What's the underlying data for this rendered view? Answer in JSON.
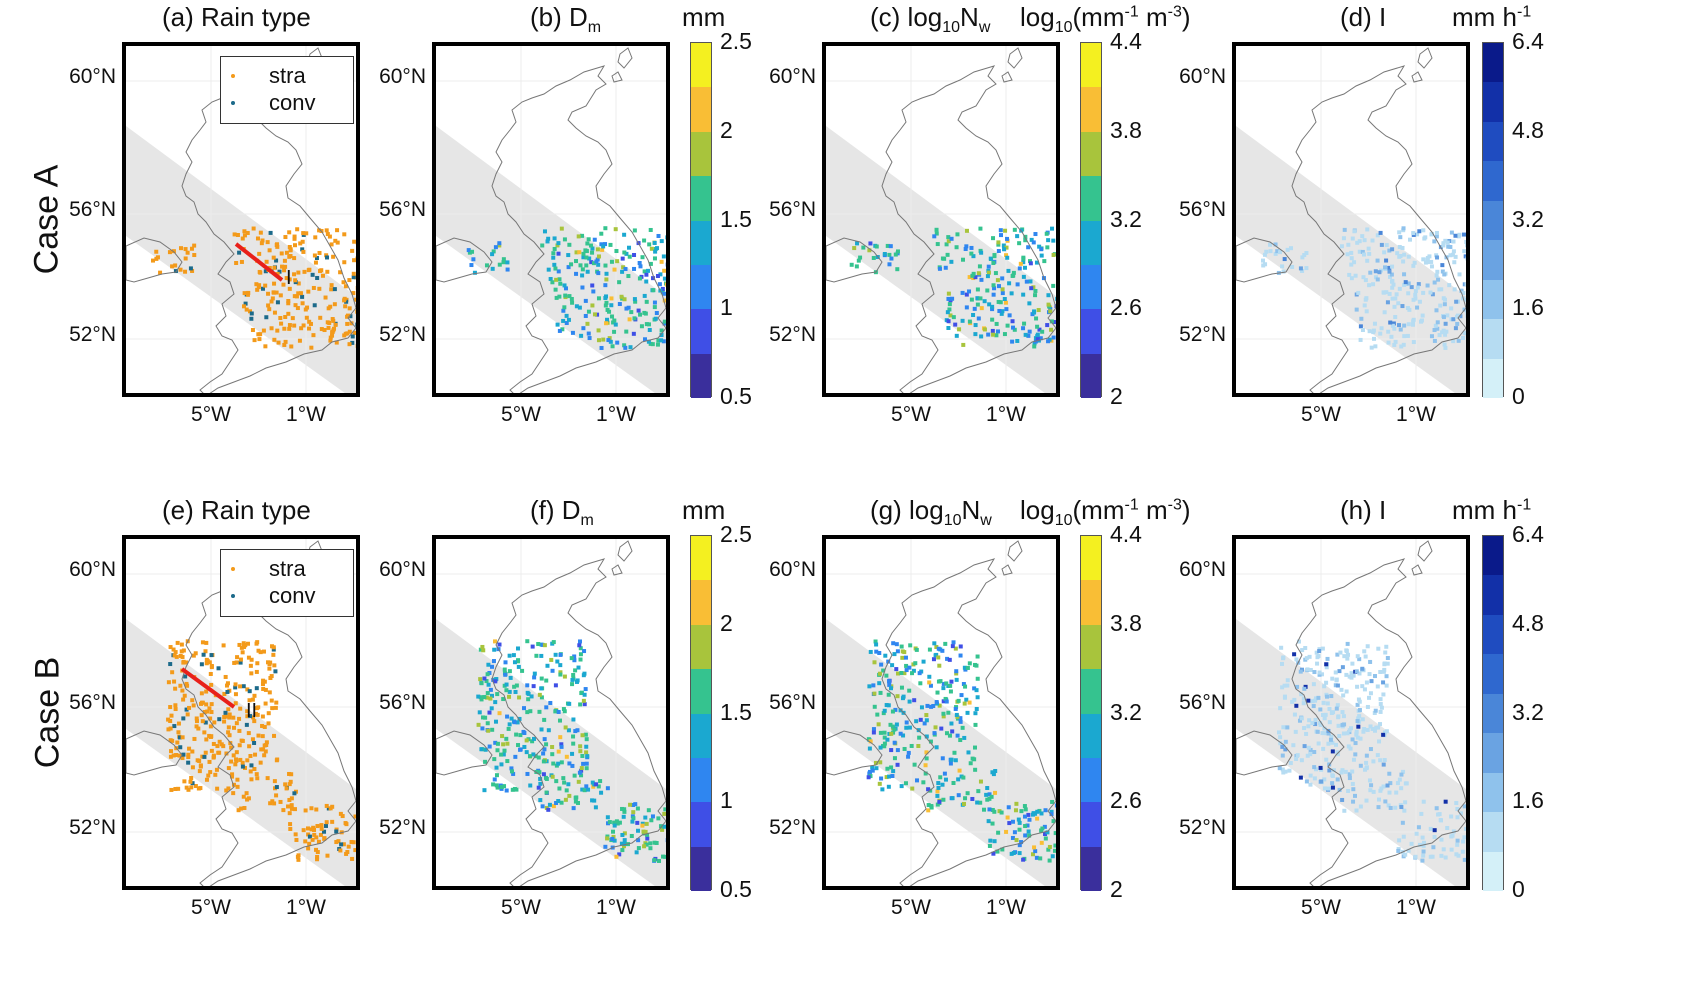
{
  "rows": [
    {
      "label": "Case A",
      "panels": [
        {
          "title": "(a) Rain type",
          "kind": "rain",
          "track_label": "I",
          "shift": 0
        },
        {
          "title_pre": "(b) D",
          "title_sub": "m",
          "unit": "mm",
          "kind": "dm",
          "shift": 0
        },
        {
          "title_pre": "(c) log",
          "title_sub": "10",
          "title_mid": "N",
          "title_sub2": "w",
          "unit": "log10(mm-1 m-3)",
          "kind": "nw",
          "shift": 0
        },
        {
          "title": "(d) I",
          "unit": "mm h-1",
          "kind": "int",
          "shift": 0
        }
      ]
    },
    {
      "label": "Case B",
      "panels": [
        {
          "title": "(e) Rain type",
          "kind": "rain",
          "track_label": "II",
          "shift": 1
        },
        {
          "title_pre": "(f) D",
          "title_sub": "m",
          "unit": "mm",
          "kind": "dm",
          "shift": 1
        },
        {
          "title_pre": "(g) log",
          "title_sub": "10",
          "title_mid": "N",
          "title_sub2": "w",
          "unit": "log10(mm-1 m-3)",
          "kind": "nw",
          "shift": 1
        },
        {
          "title": "(h) I",
          "unit": "mm h-1",
          "kind": "int",
          "shift": 1
        }
      ]
    }
  ],
  "lat_labels": [
    "60°N",
    "56°N",
    "52°N"
  ],
  "lon_labels": [
    "5°W",
    "1°W"
  ],
  "legend": {
    "stra": "stra",
    "conv": "conv",
    "stra_color": "#f39a1a",
    "conv_color": "#1c6a8a"
  },
  "colorbars": {
    "dm": {
      "ticks": [
        "2.5",
        "2",
        "1.5",
        "1",
        "0.5"
      ],
      "colors": [
        "#f4f020",
        "#f9be35",
        "#a8c43c",
        "#35c38f",
        "#1ba8d0",
        "#2f86f0",
        "#3f4fe6",
        "#3a2f9c"
      ]
    },
    "nw": {
      "ticks": [
        "4.4",
        "3.8",
        "3.2",
        "2.6",
        "2"
      ],
      "colors": [
        "#f4f020",
        "#f9be35",
        "#a8c43c",
        "#35c38f",
        "#1ba8d0",
        "#2f86f0",
        "#3f4fe6",
        "#3a2f9c"
      ]
    },
    "int": {
      "ticks": [
        "6.4",
        "4.8",
        "3.2",
        "1.6",
        "0"
      ],
      "colors": [
        "#0a1a8a",
        "#1230a8",
        "#1f4cc0",
        "#2f68cf",
        "#4a86d8",
        "#6aa3e2",
        "#8fc2ec",
        "#b6dcf2",
        "#d4f0f8"
      ]
    }
  },
  "track_color": "#e8201a",
  "swath_color": "#e6e6e6"
}
